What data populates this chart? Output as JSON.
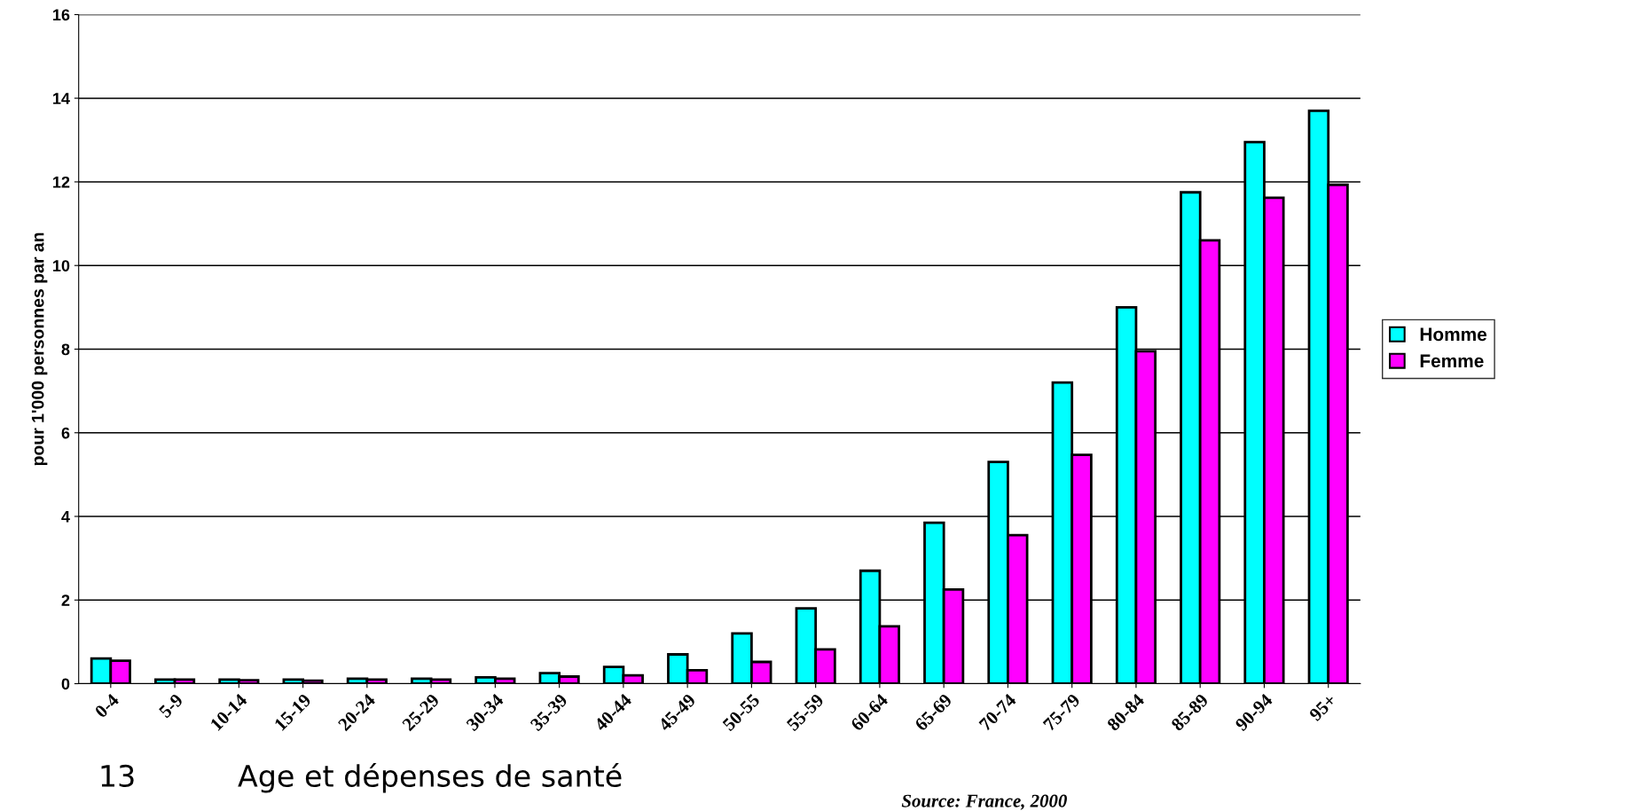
{
  "chart_data": {
    "type": "bar",
    "ylabel": "pour 1'000 personnes par an",
    "categories": [
      "0-4",
      "5-9",
      "10-14",
      "15-19",
      "20-24",
      "25-29",
      "30-34",
      "35-39",
      "40-44",
      "45-49",
      "50-55",
      "55-59",
      "60-64",
      "65-69",
      "70-74",
      "75-79",
      "80-84",
      "85-89",
      "90-94",
      "95+"
    ],
    "series": [
      {
        "name": "Homme",
        "color": "#00ffff",
        "values": [
          0.6,
          0.1,
          0.1,
          0.1,
          0.12,
          0.12,
          0.15,
          0.25,
          0.4,
          0.7,
          1.2,
          1.8,
          2.7,
          3.85,
          5.3,
          7.2,
          9.0,
          11.75,
          12.95,
          13.7
        ]
      },
      {
        "name": "Femme",
        "color": "#ff00ff",
        "values": [
          0.55,
          0.1,
          0.08,
          0.07,
          0.1,
          0.1,
          0.12,
          0.17,
          0.2,
          0.32,
          0.52,
          0.82,
          1.37,
          2.25,
          3.55,
          5.47,
          7.95,
          10.6,
          11.62,
          11.93
        ]
      }
    ],
    "ylim": [
      0,
      16
    ],
    "yticks": [
      0,
      2,
      4,
      6,
      8,
      10,
      12,
      14,
      16
    ],
    "grid": "y",
    "legend": "right",
    "annotations": [
      "13",
      "Age et dépenses de santé",
      "Source: France, 2000"
    ]
  }
}
